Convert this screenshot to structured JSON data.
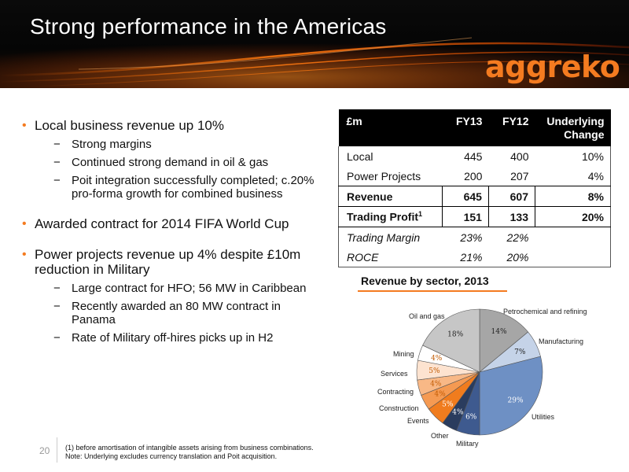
{
  "header": {
    "title": "Strong performance in the Americas",
    "logo": "aggreko"
  },
  "bullets": [
    {
      "text": "Local business revenue up 10%",
      "subs": [
        "Strong margins",
        "Continued strong demand in oil & gas",
        "Poit integration successfully completed; c.20% pro-forma growth for combined business"
      ]
    },
    {
      "text": "Awarded contract for 2014 FIFA World Cup",
      "subs": []
    },
    {
      "text": "Power projects revenue up 4% despite £10m reduction in Military",
      "subs": [
        "Large contract for HFO; 56 MW in Caribbean",
        "Recently awarded an 80 MW contract in Panama",
        "Rate of Military off-hires picks up in H2"
      ]
    }
  ],
  "table": {
    "headers": [
      "£m",
      "FY13",
      "FY12",
      "Underlying Change"
    ],
    "rows": [
      {
        "label": "Local",
        "fy13": "445",
        "fy12": "400",
        "change": "10%"
      },
      {
        "label": "Power Projects",
        "fy13": "200",
        "fy12": "207",
        "change": "4%"
      },
      {
        "label": "Revenue",
        "fy13": "645",
        "fy12": "607",
        "change": "8%"
      },
      {
        "label": "Trading Profit",
        "sup": "1",
        "fy13": "151",
        "fy12": "133",
        "change": "20%"
      },
      {
        "label": "Trading Margin",
        "fy13": "23%",
        "fy12": "22%",
        "change": ""
      },
      {
        "label": "ROCE",
        "fy13": "21%",
        "fy12": "20%",
        "change": ""
      }
    ]
  },
  "chart_data": {
    "type": "pie",
    "title": "Revenue by sector, 2013",
    "slices": [
      {
        "label": "Petrochemical and refining",
        "value": 14,
        "pct": "14%",
        "color": "#a6a6a6"
      },
      {
        "label": "Manufacturing",
        "value": 7,
        "pct": "7%",
        "color": "#c5d3e8"
      },
      {
        "label": "Utilities",
        "value": 29,
        "pct": "29%",
        "color": "#6e90c4"
      },
      {
        "label": "Military",
        "value": 6,
        "pct": "6%",
        "color": "#3e5a8f"
      },
      {
        "label": "Other",
        "value": 4,
        "pct": "4%",
        "color": "#2a3c5e"
      },
      {
        "label": "Events",
        "value": 5,
        "pct": "5%",
        "color": "#f07c1e"
      },
      {
        "label": "Construction",
        "value": 4,
        "pct": "4%",
        "color": "#f59a52"
      },
      {
        "label": "Contracting",
        "value": 4,
        "pct": "4%",
        "color": "#f8b886"
      },
      {
        "label": "Services",
        "value": 5,
        "pct": "5%",
        "color": "#fde3d0"
      },
      {
        "label": "Mining",
        "value": 4,
        "pct": "4%",
        "color": "#ffffff"
      },
      {
        "label": "Oil and gas",
        "value": 18,
        "pct": "18%",
        "color": "#c6c6c6"
      }
    ]
  },
  "footer": {
    "page": "20",
    "footnote1": "(1)    before amortisation of intangible assets arising from business combinations.",
    "footnote2": "Note: Underlying excludes currency translation and Poit acquisition."
  }
}
